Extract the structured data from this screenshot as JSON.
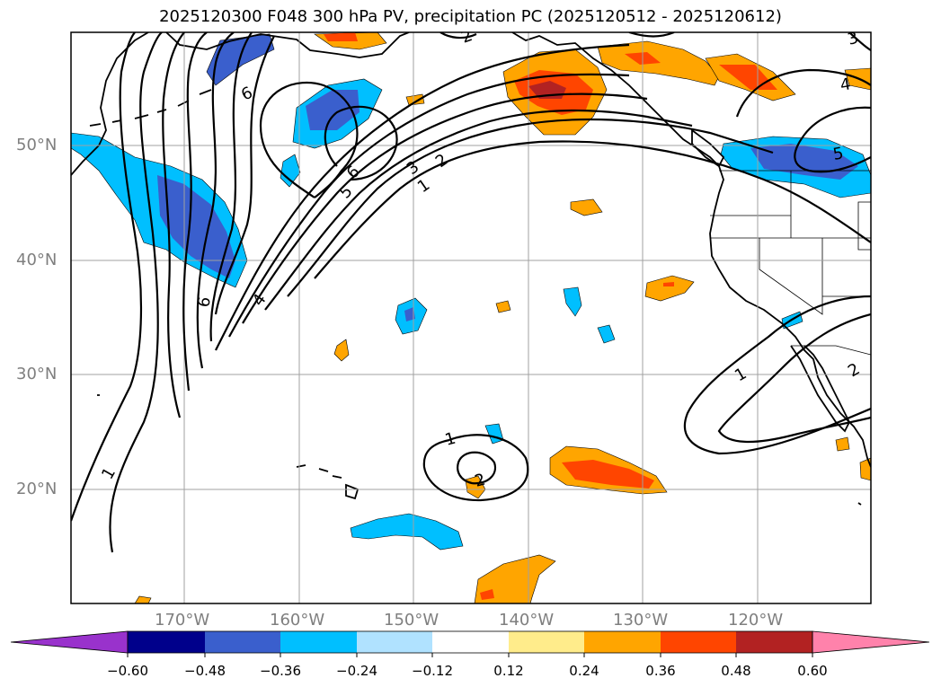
{
  "title": "2025120300 F048 300 hPa PV, precipitation PC (2025120512 - 2025120612)",
  "map": {
    "lat_labels": [
      "50°N",
      "40°N",
      "30°N",
      "20°N"
    ],
    "lon_labels": [
      "170°W",
      "160°W",
      "150°W",
      "140°W",
      "130°W",
      "120°W"
    ],
    "contour_labels": [
      "6",
      "5",
      "6",
      "3",
      "2",
      "1",
      "4",
      "6",
      "1",
      "2",
      "1",
      "2",
      "4",
      "5",
      "2",
      "3",
      "1"
    ]
  },
  "colorbar": {
    "ticks": [
      "−0.60",
      "−0.48",
      "−0.36",
      "−0.24",
      "−0.12",
      "0.12",
      "0.24",
      "0.36",
      "0.48",
      "0.60"
    ],
    "colors": [
      "#9932cc",
      "#00008b",
      "#3a5fcd",
      "#00bfff",
      "#b0e2ff",
      "#ffffff",
      "#ffec8b",
      "#ffa500",
      "#ff4500",
      "#b22222",
      "#ff82ab"
    ],
    "extend": "both"
  },
  "colors": {
    "pos_light": "#ffa500",
    "pos_mid": "#ff4500",
    "pos_strong": "#b22222",
    "neg_light": "#00bfff",
    "neg_mid": "#3a5fcd",
    "contour": "#000000",
    "grid": "#a0a0a0"
  }
}
